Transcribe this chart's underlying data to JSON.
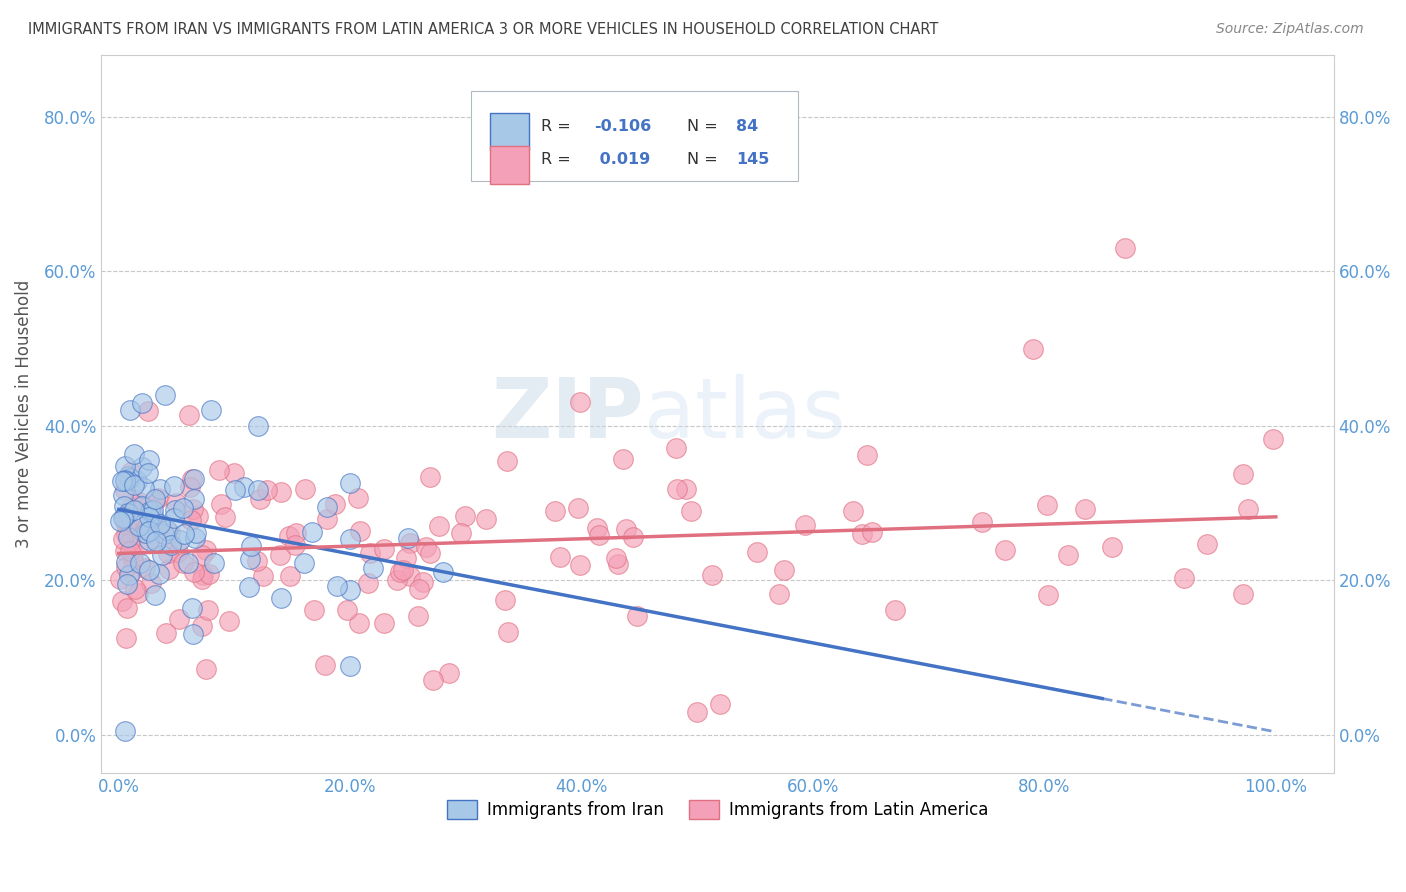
{
  "title": "IMMIGRANTS FROM IRAN VS IMMIGRANTS FROM LATIN AMERICA 3 OR MORE VEHICLES IN HOUSEHOLD CORRELATION CHART",
  "source": "Source: ZipAtlas.com",
  "ylabel_label": "3 or more Vehicles in Household",
  "iran_color": "#a8c8e8",
  "latin_color": "#f4a0b8",
  "iran_line_color": "#4472c4",
  "latin_line_color": "#e07080",
  "watermark_zip": "ZIP",
  "watermark_atlas": "atlas",
  "background_color": "#ffffff",
  "grid_color": "#c8c8c8",
  "title_color": "#404040",
  "legend_iran_label": "Immigrants from Iran",
  "legend_latin_label": "Immigrants from Latin America",
  "R_iran": "-0.106",
  "N_iran": "84",
  "R_latin": "0.019",
  "N_latin": "145"
}
